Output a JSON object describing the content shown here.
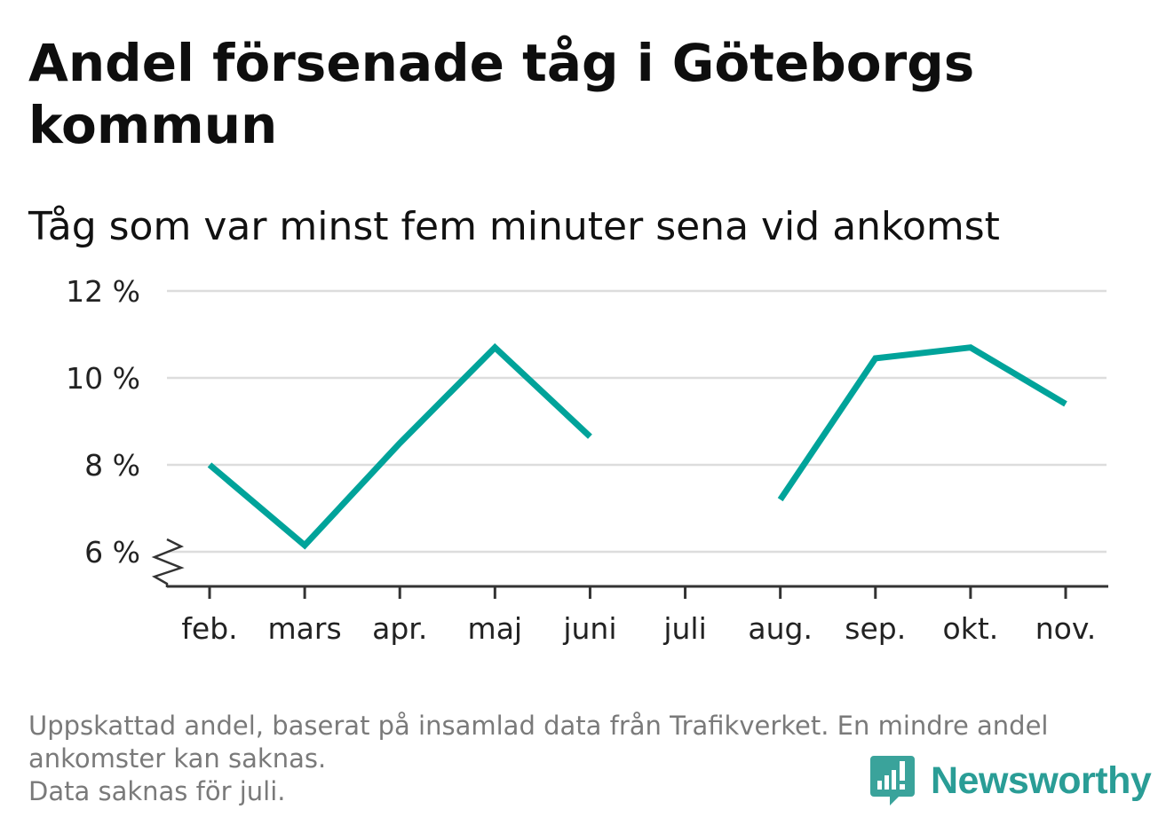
{
  "title": "Andel försenade tåg i Göteborgs kommun",
  "subtitle": "Tåg som var minst fem minuter sena vid ankomst",
  "chart_data": {
    "type": "line",
    "categories": [
      "feb.",
      "mars",
      "apr.",
      "maj",
      "juni",
      "juli",
      "aug.",
      "sep.",
      "okt.",
      "nov."
    ],
    "series": [
      {
        "values": [
          8.0,
          6.15,
          8.5,
          10.7,
          8.65,
          null,
          7.2,
          10.45,
          10.7,
          9.4
        ]
      }
    ],
    "y_ticks": [
      6,
      8,
      10,
      12
    ],
    "y_tick_labels": [
      "6 %",
      "8 %",
      "10 %",
      "12 %"
    ],
    "ylim": [
      6,
      12
    ],
    "xlabel": "",
    "ylabel": "",
    "grid": true,
    "axis_break": true,
    "line_color": "#00a39a",
    "grid_color": "#dddddd",
    "axis_color": "#333333"
  },
  "footer": {
    "line1": "Uppskattad andel, baserat på insamlad data från Trafikverket. En mindre andel",
    "line2": "ankomster kan saknas.",
    "line3": "Data saknas för juli."
  },
  "logo": {
    "text": "Newsworthy",
    "icon": "newsworthy-bar-chart-icon",
    "color": "#2a9d96"
  }
}
